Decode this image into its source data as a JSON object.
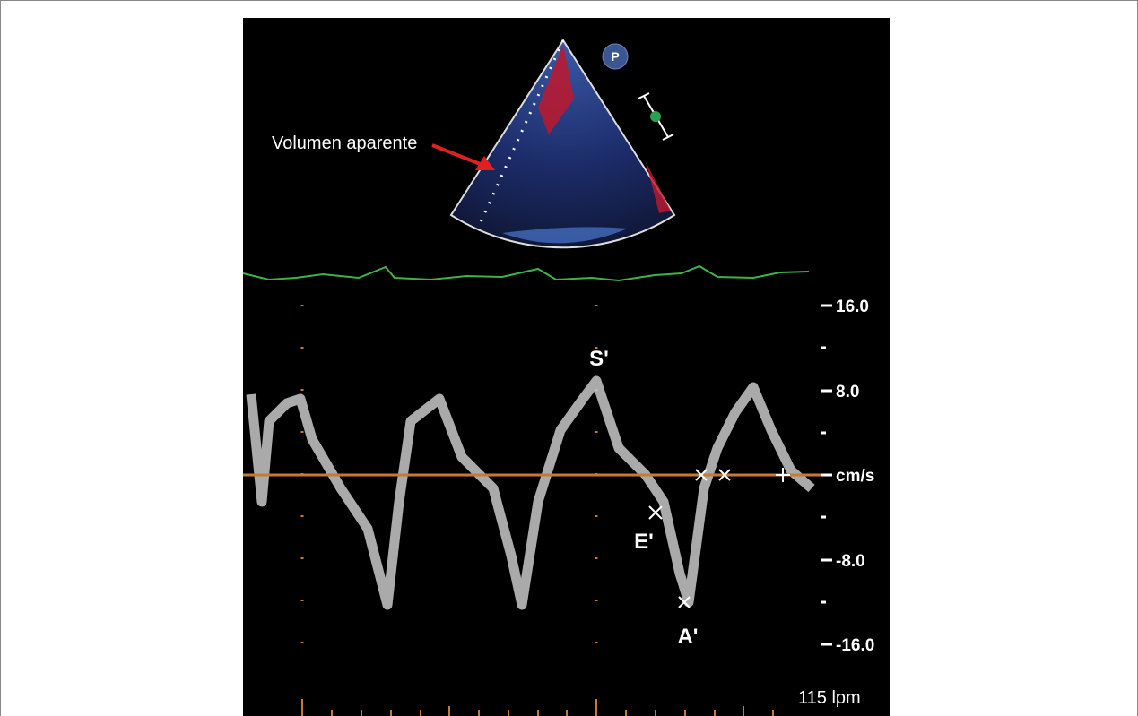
{
  "annotations": {
    "volume": "Volumen aparente",
    "s_wave": "S'",
    "e_wave": "E'",
    "a_wave": "A'"
  },
  "scale": {
    "ticks": [
      "16.0",
      "8.0",
      "-8.0",
      "-16.0"
    ],
    "unit": "cm/s"
  },
  "heart_rate": "115 lpm"
}
